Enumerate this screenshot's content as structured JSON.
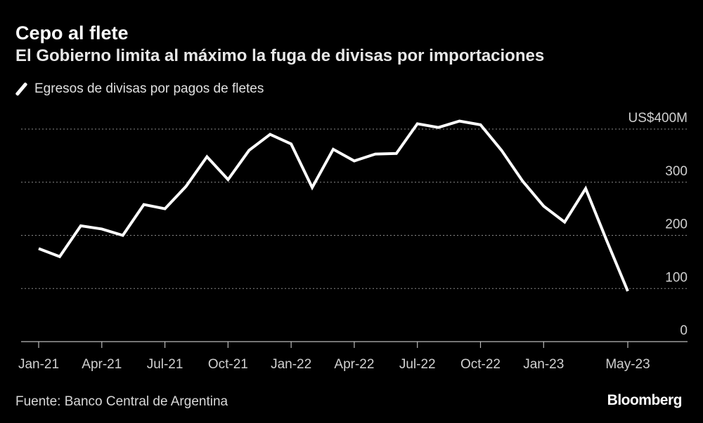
{
  "header": {
    "title": "Cepo al flete",
    "subtitle": "El Gobierno limita al máximo la fuga de divisas por importaciones"
  },
  "legend": {
    "label": "Egresos de divisas por pagos de fletes"
  },
  "footer": {
    "source": "Fuente: Banco Central de Argentina",
    "brand": "Bloomberg"
  },
  "colors": {
    "background": "#000000",
    "line": "#ffffff",
    "grid": "#8a8a8a",
    "axis": "#bbbbbb"
  },
  "chart_data": {
    "type": "line",
    "title": "Cepo al flete",
    "subtitle": "El Gobierno limita al máximo la fuga de divisas por importaciones",
    "xlabel": "",
    "ylabel": "",
    "ylim": [
      0,
      400
    ],
    "yticks": [
      {
        "value": 400,
        "label": "US$400M"
      },
      {
        "value": 300,
        "label": "300"
      },
      {
        "value": 200,
        "label": "200"
      },
      {
        "value": 100,
        "label": "100"
      },
      {
        "value": 0,
        "label": "0"
      }
    ],
    "xtick_labels": [
      "Jan-21",
      "Apr-21",
      "Jul-21",
      "Oct-21",
      "Jan-22",
      "Apr-22",
      "Jul-22",
      "Oct-22",
      "Jan-23",
      "May-23"
    ],
    "xtick_indices": [
      0,
      3,
      6,
      9,
      12,
      15,
      18,
      21,
      24,
      28
    ],
    "grid": true,
    "series": [
      {
        "name": "Egresos de divisas por pagos de fletes",
        "x": [
          "Jan-21",
          "Feb-21",
          "Mar-21",
          "Apr-21",
          "May-21",
          "Jun-21",
          "Jul-21",
          "Aug-21",
          "Sep-21",
          "Oct-21",
          "Nov-21",
          "Dec-21",
          "Jan-22",
          "Feb-22",
          "Mar-22",
          "Apr-22",
          "May-22",
          "Jun-22",
          "Jul-22",
          "Aug-22",
          "Sep-22",
          "Oct-22",
          "Nov-22",
          "Dec-22",
          "Jan-23",
          "Feb-23",
          "Mar-23",
          "Apr-23",
          "May-23"
        ],
        "values": [
          175,
          160,
          218,
          212,
          200,
          258,
          250,
          292,
          348,
          305,
          360,
          390,
          372,
          290,
          362,
          340,
          353,
          354,
          410,
          403,
          415,
          408,
          360,
          302,
          255,
          225,
          288,
          190,
          95
        ]
      }
    ]
  }
}
